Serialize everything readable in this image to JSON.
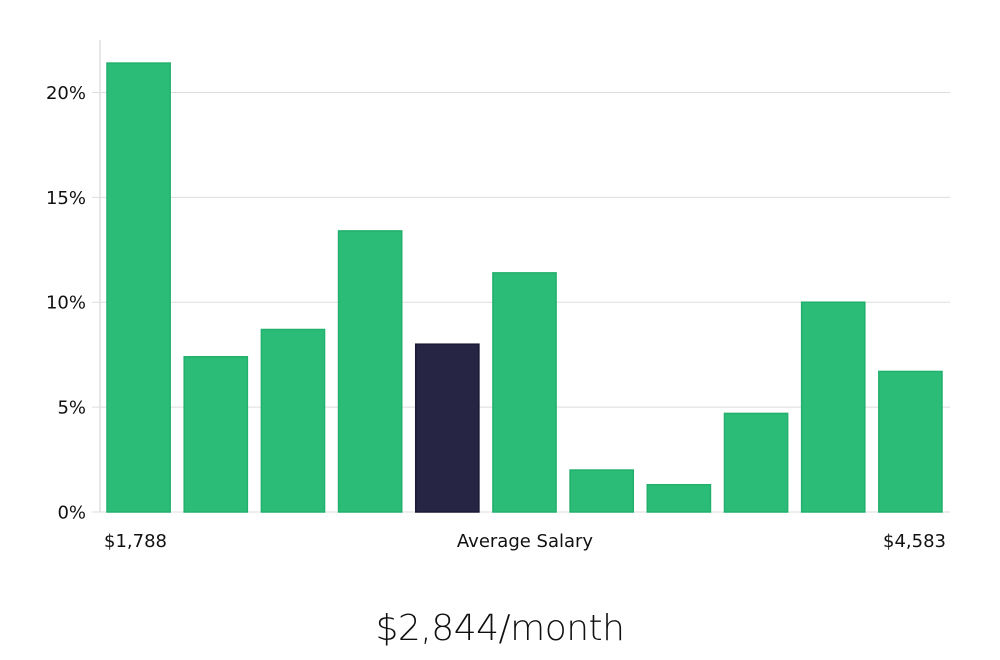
{
  "chart_data": {
    "type": "bar",
    "categories": [
      "1",
      "2",
      "3",
      "4",
      "5",
      "6",
      "7",
      "8",
      "9",
      "10",
      "11"
    ],
    "values": [
      21.4,
      7.4,
      8.7,
      13.4,
      8.0,
      11.4,
      2.0,
      1.3,
      4.7,
      10.0,
      6.7
    ],
    "highlight_index": 4,
    "ylim": [
      0,
      22.5
    ],
    "yticks": [
      0,
      5,
      10,
      15,
      20
    ],
    "ytick_labels": [
      "0%",
      "5%",
      "10%",
      "15%",
      "20%"
    ],
    "x_axis_labels": {
      "left": "$1,788",
      "center": "Average Salary",
      "right": "$4,583"
    },
    "grid": true,
    "colors": {
      "bar": "#2bbd78",
      "bar_highlight": "#272544",
      "grid": "#dddddd"
    }
  },
  "caption": "$2,844/month"
}
